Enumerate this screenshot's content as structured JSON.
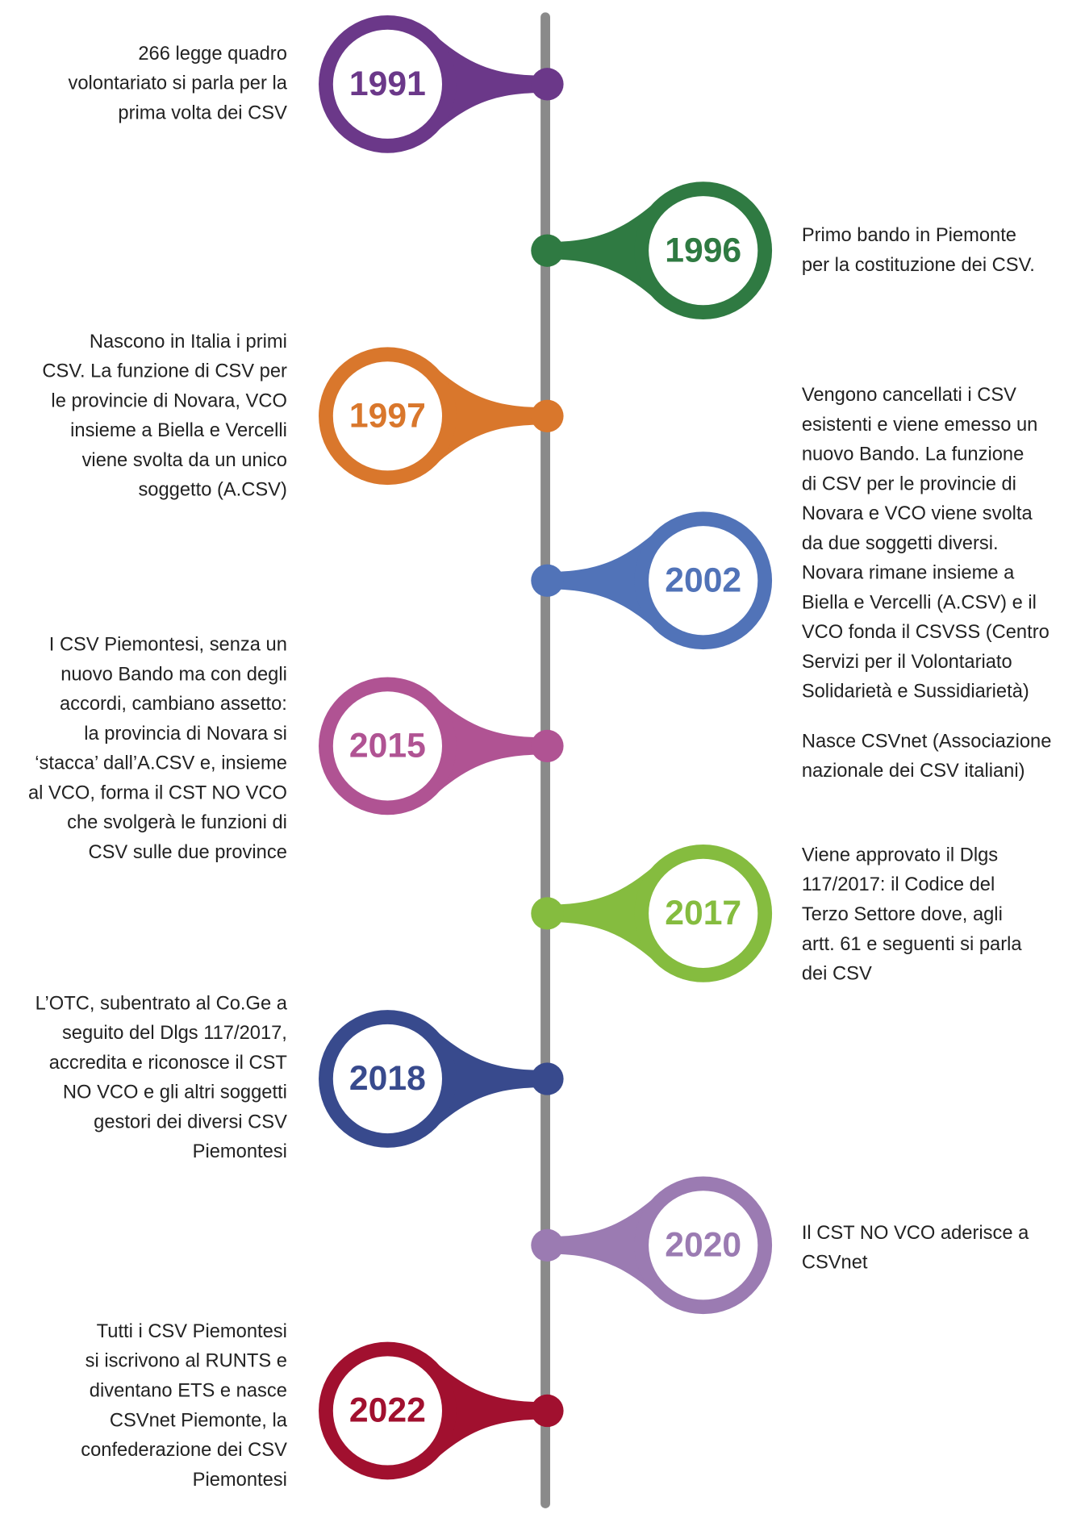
{
  "events": [
    {
      "year": "1991",
      "color": "#6b3889",
      "side": "left",
      "lines": [
        "266 legge quadro",
        "volontariato si parla per la",
        "prima volta dei CSV"
      ]
    },
    {
      "year": "1996",
      "color": "#2f7a42",
      "side": "right",
      "lines": [
        "Primo bando in Piemonte",
        "per la costituzione dei CSV."
      ]
    },
    {
      "year": "1997",
      "color": "#d9772c",
      "side": "left",
      "lines": [
        "Nascono in Italia i primi",
        "CSV. La funzione di CSV per",
        "le provincie di Novara, VCO",
        "insieme a Biella e Vercelli",
        "viene svolta da un unico",
        "soggetto (A.CSV)"
      ]
    },
    {
      "year": "2002",
      "color": "#5173b8",
      "side": "right",
      "lines": [
        "Vengono cancellati i CSV",
        "esistenti e viene emesso un",
        "nuovo Bando. La funzione",
        "di CSV per le provincie di",
        "Novara e VCO viene svolta",
        "da due soggetti diversi.",
        "Novara rimane insieme a",
        "Biella e Vercelli (A.CSV) e il",
        "VCO fonda il CSVSS (Centro",
        "Servizi per il Volontariato",
        "Solidarietà e Sussidiarietà)"
      ],
      "extra_lines": [
        "Nasce CSVnet (Associazione",
        "nazionale dei CSV italiani)"
      ]
    },
    {
      "year": "2015",
      "color": "#b05393",
      "side": "left",
      "lines": [
        "I CSV Piemontesi, senza un",
        "nuovo Bando ma con degli",
        "accordi, cambiano assetto:",
        "la provincia di Novara si",
        "‘stacca’ dall’A.CSV e, insieme",
        "al VCO, forma il CST NO VCO",
        "che svolgerà le funzioni di",
        "CSV sulle due province"
      ]
    },
    {
      "year": "2017",
      "color": "#85bc3f",
      "side": "right",
      "lines": [
        "Viene approvato il Dlgs",
        "117/2017: il Codice del",
        "Terzo Settore dove, agli",
        "artt. 61 e seguenti si parla",
        "dei CSV"
      ]
    },
    {
      "year": "2018",
      "color": "#384a8d",
      "side": "left",
      "lines": [
        "L’OTC, subentrato al Co.Ge a",
        "seguito del Dlgs 117/2017,",
        "accredita e riconosce il CST",
        "NO VCO e gli altri soggetti",
        "gestori dei diversi CSV",
        "Piemontesi"
      ]
    },
    {
      "year": "2020",
      "color": "#9b7bb2",
      "side": "right",
      "lines": [
        "Il CST NO VCO aderisce a",
        "CSVnet"
      ]
    },
    {
      "year": "2022",
      "color": "#a1102f",
      "side": "left",
      "lines": [
        "Tutti i CSV Piemontesi",
        "si iscrivono al RUNTS e",
        "diventano ETS e nasce",
        "CSVnet Piemonte, la",
        "confederazione dei CSV",
        "Piemontesi"
      ]
    }
  ]
}
